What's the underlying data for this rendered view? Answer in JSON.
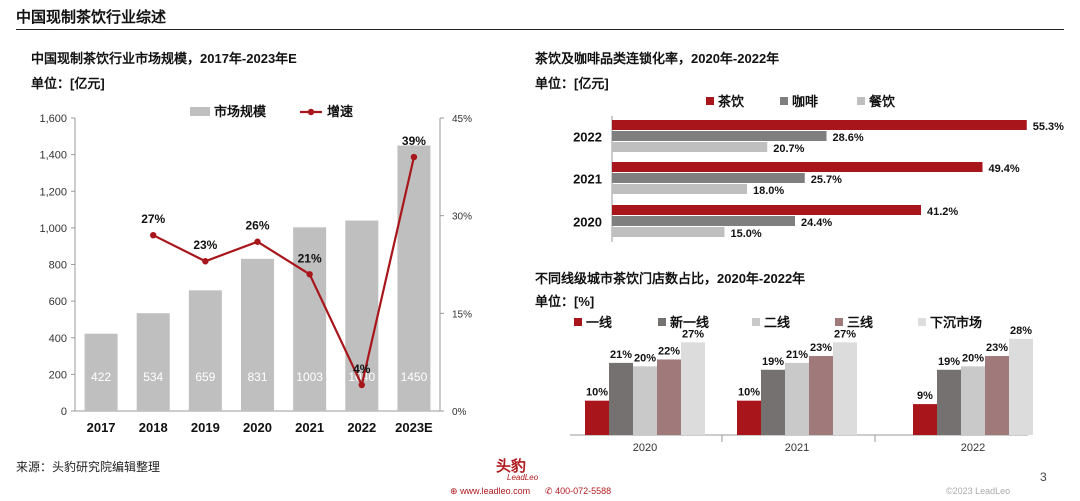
{
  "page": {
    "title": "中国现制茶饮行业综述",
    "source": "来源：头豹研究院编辑整理",
    "brand": "头豹",
    "brand_sub": "LeadLeo",
    "website": "www.leadleo.com",
    "phone": "400-072-5588",
    "copyright": "©2023 LeadLeo",
    "page_number": "3",
    "accent_color": "#a8161b"
  },
  "chart_data": [
    {
      "type": "bar",
      "title": "中国现制茶饮行业市场规模，2017年-2023年E",
      "unit": "单位：[亿元]",
      "categories": [
        "2017",
        "2018",
        "2019",
        "2020",
        "2021",
        "2022",
        "2023E"
      ],
      "series": [
        {
          "name": "市场规模",
          "type": "bar",
          "axis": "left",
          "color": "#bfbfbf",
          "values": [
            422,
            534,
            659,
            831,
            1003,
            1040,
            1450
          ]
        },
        {
          "name": "增速",
          "type": "line",
          "axis": "right",
          "color": "#a8161b",
          "values": [
            null,
            27,
            23,
            26,
            21,
            4,
            39
          ],
          "labels": [
            "",
            "27%",
            "23%",
            "26%",
            "21%",
            "4%",
            "39%"
          ]
        }
      ],
      "ylim": [
        0,
        1600
      ],
      "yticks": [
        "0",
        "200",
        "400",
        "600",
        "800",
        "1,000",
        "1,200",
        "1,400",
        "1,600"
      ],
      "y2lim": [
        0,
        45
      ],
      "y2ticks": [
        "0%",
        "15%",
        "30%",
        "45%"
      ],
      "legend_position": "top"
    },
    {
      "type": "bar",
      "orientation": "horizontal",
      "title": "茶饮及咖啡品类连锁化率，2020年-2022年",
      "unit": "单位：[亿元]",
      "categories": [
        "2022",
        "2021",
        "2020"
      ],
      "series": [
        {
          "name": "茶饮",
          "color": "#a8161b",
          "values": [
            55.3,
            49.4,
            41.2
          ],
          "labels": [
            "55.3%",
            "49.4%",
            "41.2%"
          ]
        },
        {
          "name": "咖啡",
          "color": "#7f7f7f",
          "values": [
            28.6,
            25.7,
            24.4
          ],
          "labels": [
            "28.6%",
            "25.7%",
            "24.4%"
          ]
        },
        {
          "name": "餐饮",
          "color": "#bfbfbf",
          "values": [
            20.7,
            18.0,
            15.0
          ],
          "labels": [
            "20.7%",
            "18.0%",
            "15.0%"
          ]
        }
      ],
      "xlim": [
        0,
        60
      ],
      "legend_position": "top"
    },
    {
      "type": "bar",
      "title": "不同线级城市茶饮门店数占比，2020年-2022年",
      "unit": "单位：[%]",
      "categories": [
        "2020",
        "2021",
        "2022"
      ],
      "series": [
        {
          "name": "一线",
          "color": "#a8161b",
          "values": [
            10,
            10,
            9
          ],
          "labels": [
            "10%",
            "10%",
            "9%"
          ]
        },
        {
          "name": "新一线",
          "color": "#767171",
          "values": [
            21,
            19,
            19
          ],
          "labels": [
            "21%",
            "19%",
            "19%"
          ]
        },
        {
          "name": "二线",
          "color": "#c9c9c9",
          "values": [
            20,
            21,
            20
          ],
          "labels": [
            "20%",
            "21%",
            "20%"
          ]
        },
        {
          "name": "三线",
          "color": "#a07a7b",
          "values": [
            22,
            23,
            23
          ],
          "labels": [
            "22%",
            "23%",
            "23%"
          ]
        },
        {
          "name": "下沉市场",
          "color": "#dcdcdc",
          "values": [
            27,
            27,
            28
          ],
          "labels": [
            "27%",
            "27%",
            "28%"
          ]
        }
      ],
      "ylim": [
        0,
        30
      ],
      "legend_position": "top"
    }
  ]
}
